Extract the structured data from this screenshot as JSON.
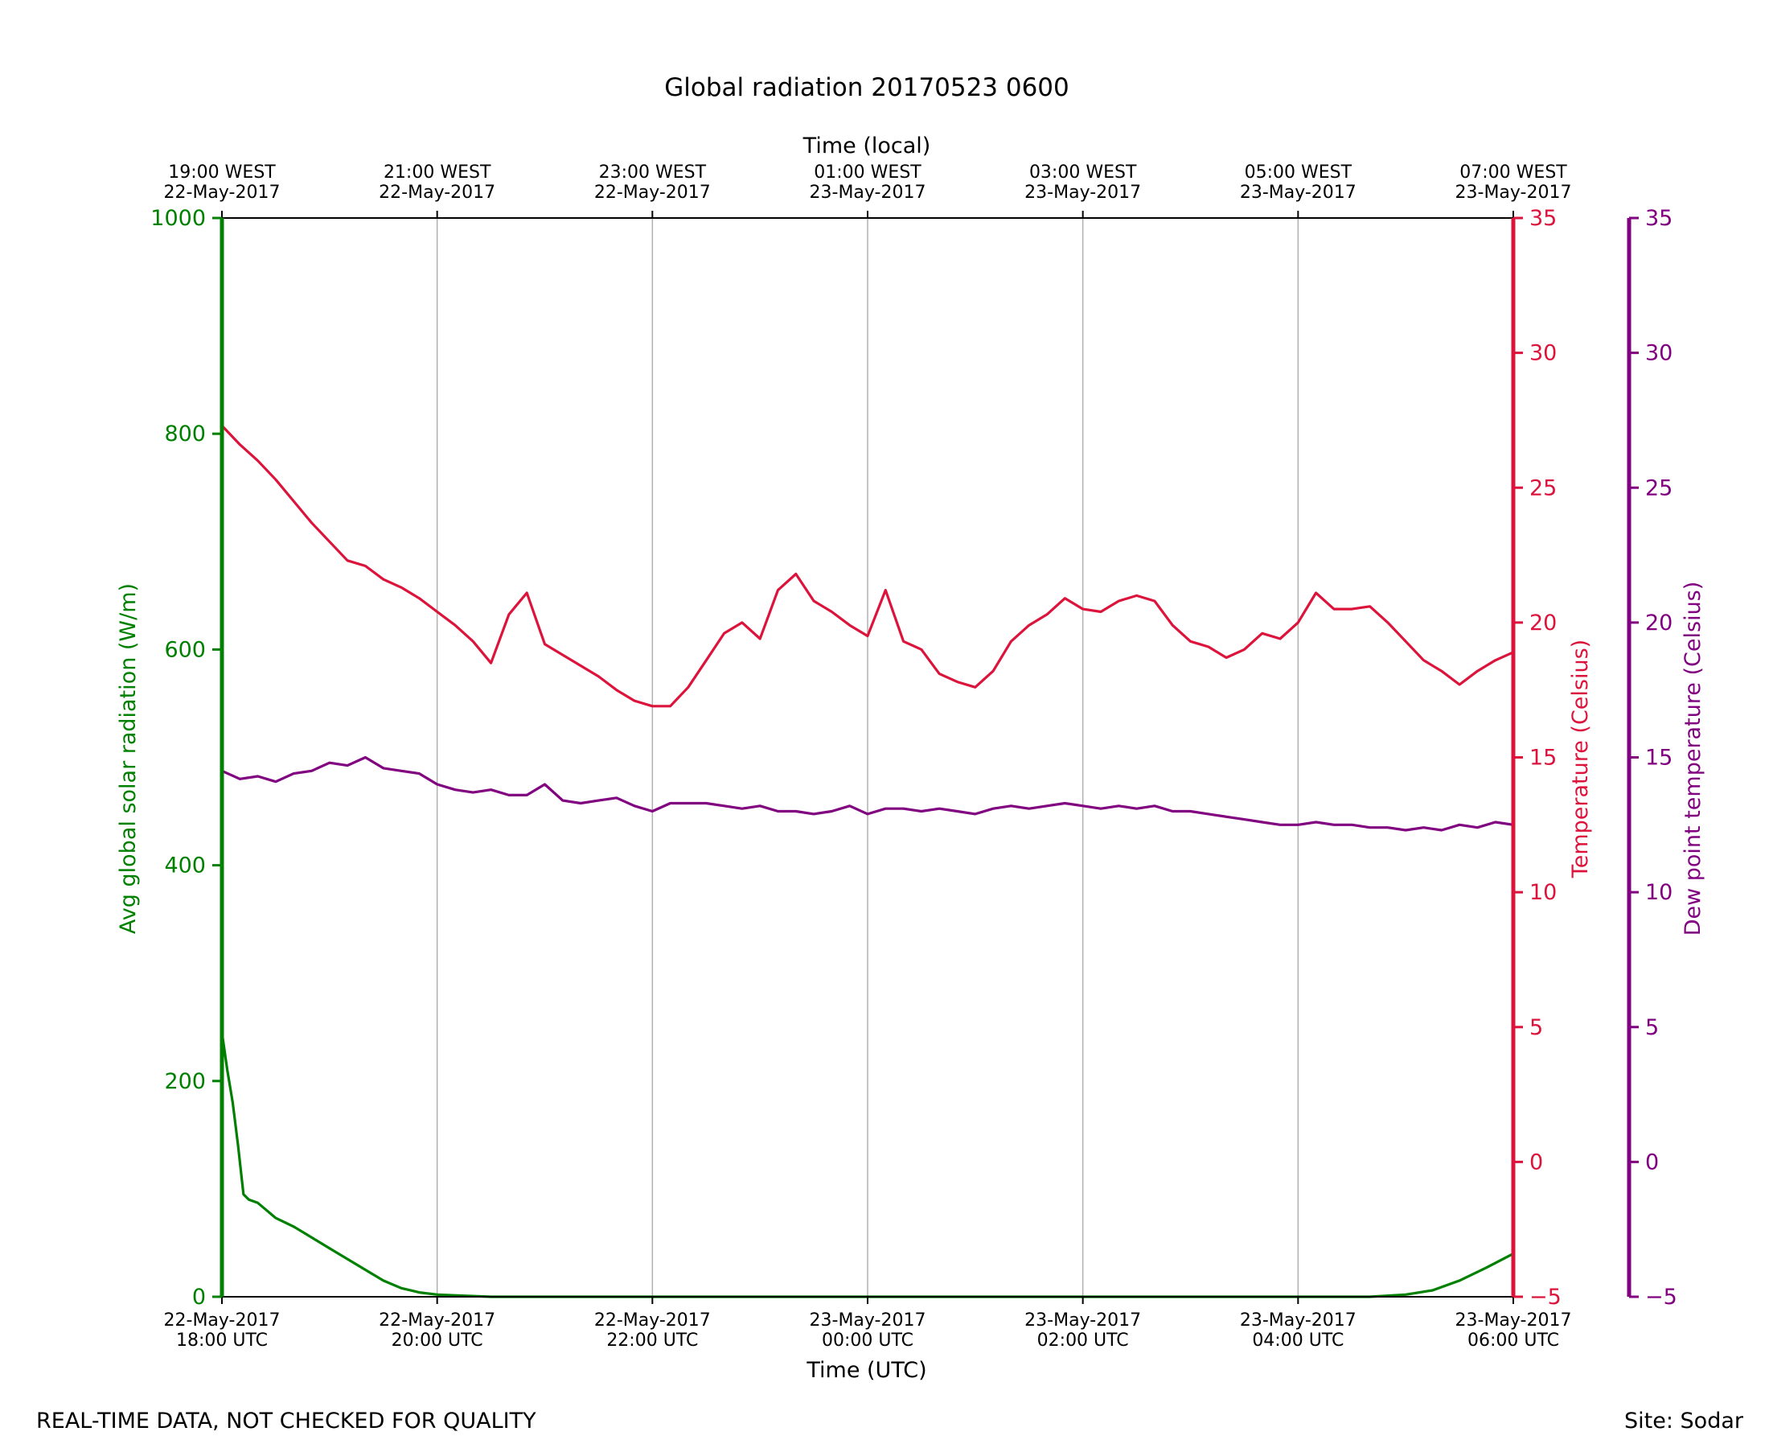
{
  "footer": {
    "left_note": "REAL-TIME DATA, NOT CHECKED FOR QUALITY",
    "site": "Site: Sodar"
  },
  "chart_data": {
    "type": "line",
    "title": "Global radiation 20170523 0600",
    "xlabel": "Time (UTC)",
    "x2label": "Time (local)",
    "xlim": [
      "2017-05-22T18:00",
      "2017-05-23T06:00"
    ],
    "grid": "vertical",
    "x_ticks_bottom": [
      [
        "22-May-2017",
        "18:00 UTC"
      ],
      [
        "22-May-2017",
        "20:00 UTC"
      ],
      [
        "22-May-2017",
        "22:00 UTC"
      ],
      [
        "23-May-2017",
        "00:00 UTC"
      ],
      [
        "23-May-2017",
        "02:00 UTC"
      ],
      [
        "23-May-2017",
        "04:00 UTC"
      ],
      [
        "23-May-2017",
        "06:00 UTC"
      ]
    ],
    "x_ticks_top": [
      [
        "19:00 WEST",
        "22-May-2017"
      ],
      [
        "21:00 WEST",
        "22-May-2017"
      ],
      [
        "23:00 WEST",
        "22-May-2017"
      ],
      [
        "01:00 WEST",
        "23-May-2017"
      ],
      [
        "03:00 WEST",
        "23-May-2017"
      ],
      [
        "05:00 WEST",
        "23-May-2017"
      ],
      [
        "07:00 WEST",
        "23-May-2017"
      ]
    ],
    "axes": {
      "radiation": {
        "label": "Avg global solar radiation (W/m)",
        "ylim": [
          0,
          1000
        ],
        "ticks": [
          "0",
          "200",
          "400",
          "600",
          "800",
          "1000"
        ],
        "color": "#008000"
      },
      "temperature": {
        "label": "Temperature (Celsius)",
        "ylim": [
          -5,
          35
        ],
        "ticks": [
          "−5",
          "0",
          "5",
          "10",
          "15",
          "20",
          "25",
          "30",
          "35"
        ],
        "color": "#dc143c"
      },
      "dewpoint": {
        "label": "Dew point temperature (Celsius)",
        "ylim": [
          -5,
          35
        ],
        "ticks": [
          "−5",
          "0",
          "5",
          "10",
          "15",
          "20",
          "25",
          "30",
          "35"
        ],
        "color": "#800080"
      }
    },
    "series": [
      {
        "axis": "radiation",
        "color": "#008000",
        "x": [
          "2017-05-22T18:00",
          "2017-05-22T18:03",
          "2017-05-22T18:06",
          "2017-05-22T18:09",
          "2017-05-22T18:12",
          "2017-05-22T18:15",
          "2017-05-22T18:20",
          "2017-05-22T18:25",
          "2017-05-22T18:30",
          "2017-05-22T18:40",
          "2017-05-22T18:50",
          "2017-05-22T19:00",
          "2017-05-22T19:10",
          "2017-05-22T19:20",
          "2017-05-22T19:30",
          "2017-05-22T19:40",
          "2017-05-22T19:50",
          "2017-05-22T20:00",
          "2017-05-22T20:15",
          "2017-05-22T20:30",
          "2017-05-22T21:00",
          "2017-05-22T22:00",
          "2017-05-23T00:00",
          "2017-05-23T02:00",
          "2017-05-23T04:00",
          "2017-05-23T04:40",
          "2017-05-23T05:00",
          "2017-05-23T05:15",
          "2017-05-23T05:30",
          "2017-05-23T05:45",
          "2017-05-23T06:00"
        ],
        "y": [
          245,
          210,
          180,
          140,
          95,
          90,
          87,
          80,
          73,
          65,
          55,
          45,
          35,
          25,
          15,
          8,
          4,
          2,
          1,
          0,
          0,
          0,
          0,
          0,
          0,
          0,
          2,
          6,
          15,
          27,
          40
        ]
      },
      {
        "axis": "temperature",
        "color": "#dc143c",
        "x": [
          "2017-05-22T18:00",
          "2017-05-22T18:10",
          "2017-05-22T18:20",
          "2017-05-22T18:30",
          "2017-05-22T18:40",
          "2017-05-22T18:50",
          "2017-05-22T19:00",
          "2017-05-22T19:10",
          "2017-05-22T19:20",
          "2017-05-22T19:30",
          "2017-05-22T19:40",
          "2017-05-22T19:50",
          "2017-05-22T20:00",
          "2017-05-22T20:10",
          "2017-05-22T20:20",
          "2017-05-22T20:30",
          "2017-05-22T20:40",
          "2017-05-22T20:50",
          "2017-05-22T21:00",
          "2017-05-22T21:10",
          "2017-05-22T21:20",
          "2017-05-22T21:30",
          "2017-05-22T21:40",
          "2017-05-22T21:50",
          "2017-05-22T22:00",
          "2017-05-22T22:10",
          "2017-05-22T22:20",
          "2017-05-22T22:30",
          "2017-05-22T22:40",
          "2017-05-22T22:50",
          "2017-05-22T23:00",
          "2017-05-22T23:10",
          "2017-05-22T23:20",
          "2017-05-22T23:30",
          "2017-05-22T23:40",
          "2017-05-22T23:50",
          "2017-05-23T00:00",
          "2017-05-23T00:10",
          "2017-05-23T00:20",
          "2017-05-23T00:30",
          "2017-05-23T00:40",
          "2017-05-23T00:50",
          "2017-05-23T01:00",
          "2017-05-23T01:10",
          "2017-05-23T01:20",
          "2017-05-23T01:30",
          "2017-05-23T01:40",
          "2017-05-23T01:50",
          "2017-05-23T02:00",
          "2017-05-23T02:10",
          "2017-05-23T02:20",
          "2017-05-23T02:30",
          "2017-05-23T02:40",
          "2017-05-23T02:50",
          "2017-05-23T03:00",
          "2017-05-23T03:10",
          "2017-05-23T03:20",
          "2017-05-23T03:30",
          "2017-05-23T03:40",
          "2017-05-23T03:50",
          "2017-05-23T04:00",
          "2017-05-23T04:10",
          "2017-05-23T04:20",
          "2017-05-23T04:30",
          "2017-05-23T04:40",
          "2017-05-23T04:50",
          "2017-05-23T05:00",
          "2017-05-23T05:10",
          "2017-05-23T05:20",
          "2017-05-23T05:30",
          "2017-05-23T05:40",
          "2017-05-23T05:50",
          "2017-05-23T06:00"
        ],
        "y": [
          27.3,
          26.6,
          26.0,
          25.3,
          24.5,
          23.7,
          23.0,
          22.3,
          22.1,
          21.6,
          21.3,
          20.9,
          20.4,
          19.9,
          19.3,
          18.5,
          20.3,
          21.1,
          19.2,
          18.8,
          18.4,
          18.0,
          17.5,
          17.1,
          16.9,
          16.9,
          17.6,
          18.6,
          19.6,
          20.0,
          19.4,
          21.2,
          21.8,
          20.8,
          20.4,
          19.9,
          19.5,
          21.2,
          19.3,
          19.0,
          18.1,
          17.8,
          17.6,
          18.2,
          19.3,
          19.9,
          20.3,
          20.9,
          20.5,
          20.4,
          20.8,
          21.0,
          20.8,
          19.9,
          19.3,
          19.1,
          18.7,
          19.0,
          19.6,
          19.4,
          20.0,
          21.1,
          20.5,
          20.5,
          20.6,
          20.0,
          19.3,
          18.6,
          18.2,
          17.7,
          18.2,
          18.6,
          18.9
        ]
      },
      {
        "axis": "dewpoint",
        "color": "#800080",
        "x": [
          "2017-05-22T18:00",
          "2017-05-22T18:10",
          "2017-05-22T18:20",
          "2017-05-22T18:30",
          "2017-05-22T18:40",
          "2017-05-22T18:50",
          "2017-05-22T19:00",
          "2017-05-22T19:10",
          "2017-05-22T19:20",
          "2017-05-22T19:30",
          "2017-05-22T19:40",
          "2017-05-22T19:50",
          "2017-05-22T20:00",
          "2017-05-22T20:10",
          "2017-05-22T20:20",
          "2017-05-22T20:30",
          "2017-05-22T20:40",
          "2017-05-22T20:50",
          "2017-05-22T21:00",
          "2017-05-22T21:10",
          "2017-05-22T21:20",
          "2017-05-22T21:30",
          "2017-05-22T21:40",
          "2017-05-22T21:50",
          "2017-05-22T22:00",
          "2017-05-22T22:10",
          "2017-05-22T22:20",
          "2017-05-22T22:30",
          "2017-05-22T22:40",
          "2017-05-22T22:50",
          "2017-05-22T23:00",
          "2017-05-22T23:10",
          "2017-05-22T23:20",
          "2017-05-22T23:30",
          "2017-05-22T23:40",
          "2017-05-22T23:50",
          "2017-05-23T00:00",
          "2017-05-23T00:10",
          "2017-05-23T00:20",
          "2017-05-23T00:30",
          "2017-05-23T00:40",
          "2017-05-23T00:50",
          "2017-05-23T01:00",
          "2017-05-23T01:10",
          "2017-05-23T01:20",
          "2017-05-23T01:30",
          "2017-05-23T01:40",
          "2017-05-23T01:50",
          "2017-05-23T02:00",
          "2017-05-23T02:10",
          "2017-05-23T02:20",
          "2017-05-23T02:30",
          "2017-05-23T02:40",
          "2017-05-23T02:50",
          "2017-05-23T03:00",
          "2017-05-23T03:10",
          "2017-05-23T03:20",
          "2017-05-23T03:30",
          "2017-05-23T03:40",
          "2017-05-23T03:50",
          "2017-05-23T04:00",
          "2017-05-23T04:10",
          "2017-05-23T04:20",
          "2017-05-23T04:30",
          "2017-05-23T04:40",
          "2017-05-23T04:50",
          "2017-05-23T05:00",
          "2017-05-23T05:10",
          "2017-05-23T05:20",
          "2017-05-23T05:30",
          "2017-05-23T05:40",
          "2017-05-23T05:50",
          "2017-05-23T06:00"
        ],
        "y": [
          14.5,
          14.2,
          14.3,
          14.1,
          14.4,
          14.5,
          14.8,
          14.7,
          15.0,
          14.6,
          14.5,
          14.4,
          14.0,
          13.8,
          13.7,
          13.8,
          13.6,
          13.6,
          14.0,
          13.4,
          13.3,
          13.4,
          13.5,
          13.2,
          13.0,
          13.3,
          13.3,
          13.3,
          13.2,
          13.1,
          13.2,
          13.0,
          13.0,
          12.9,
          13.0,
          13.2,
          12.9,
          13.1,
          13.1,
          13.0,
          13.1,
          13.0,
          12.9,
          13.1,
          13.2,
          13.1,
          13.2,
          13.3,
          13.2,
          13.1,
          13.2,
          13.1,
          13.2,
          13.0,
          13.0,
          12.9,
          12.8,
          12.7,
          12.6,
          12.5,
          12.5,
          12.6,
          12.5,
          12.5,
          12.4,
          12.4,
          12.3,
          12.4,
          12.3,
          12.5,
          12.4,
          12.6,
          12.5
        ]
      }
    ]
  }
}
